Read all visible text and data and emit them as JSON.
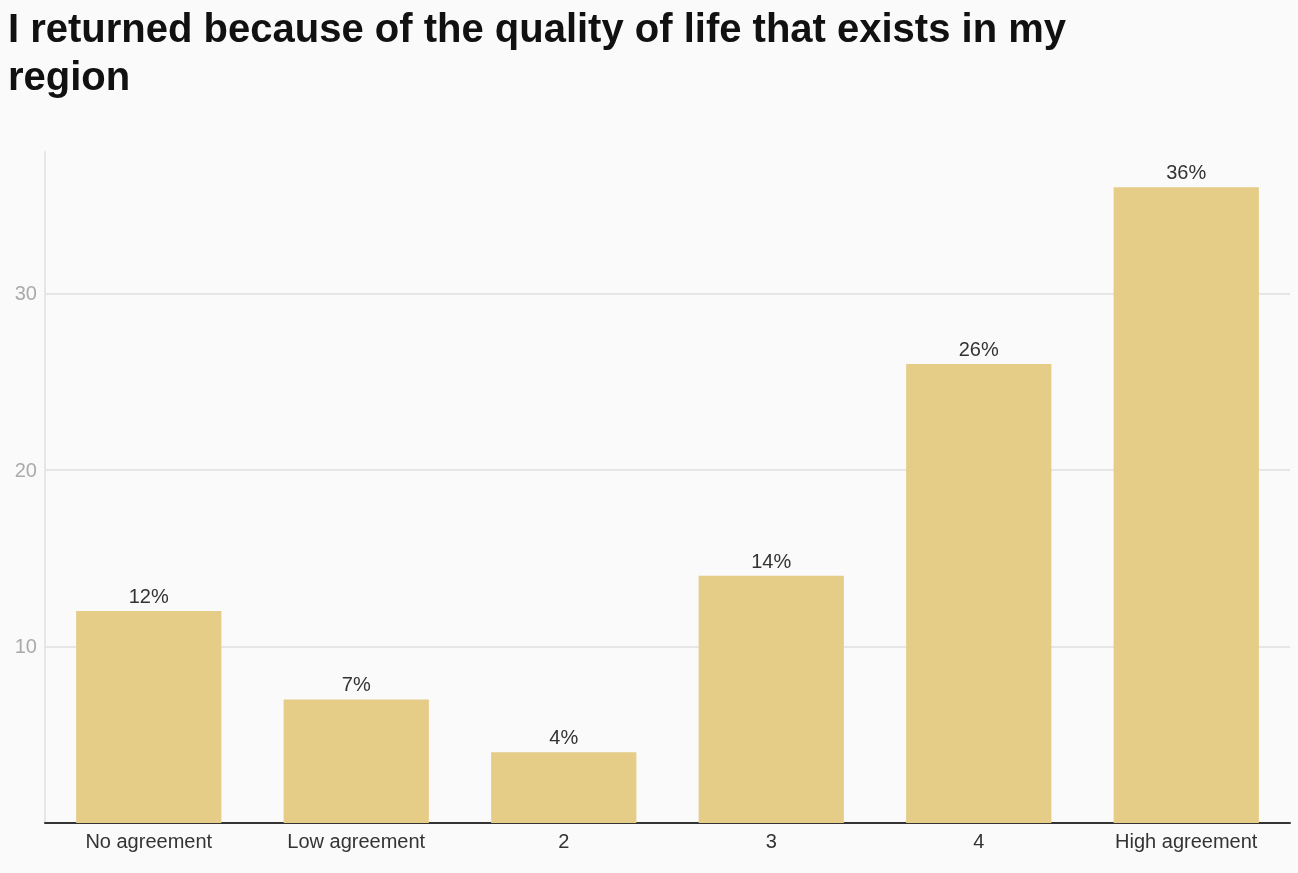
{
  "chart_data": {
    "type": "bar",
    "title": "I returned because of the quality of life that exists in my region",
    "categories": [
      "No agreement",
      "Low agreement",
      "2",
      "3",
      "4",
      "High agreement"
    ],
    "values": [
      12,
      7,
      4,
      14,
      26,
      36
    ],
    "value_labels": [
      "12%",
      "7%",
      "4%",
      "14%",
      "26%",
      "36%"
    ],
    "color": "#e5cc87",
    "ylim": [
      0,
      38
    ],
    "yticks": [
      10,
      20,
      30
    ],
    "grid": "y"
  }
}
